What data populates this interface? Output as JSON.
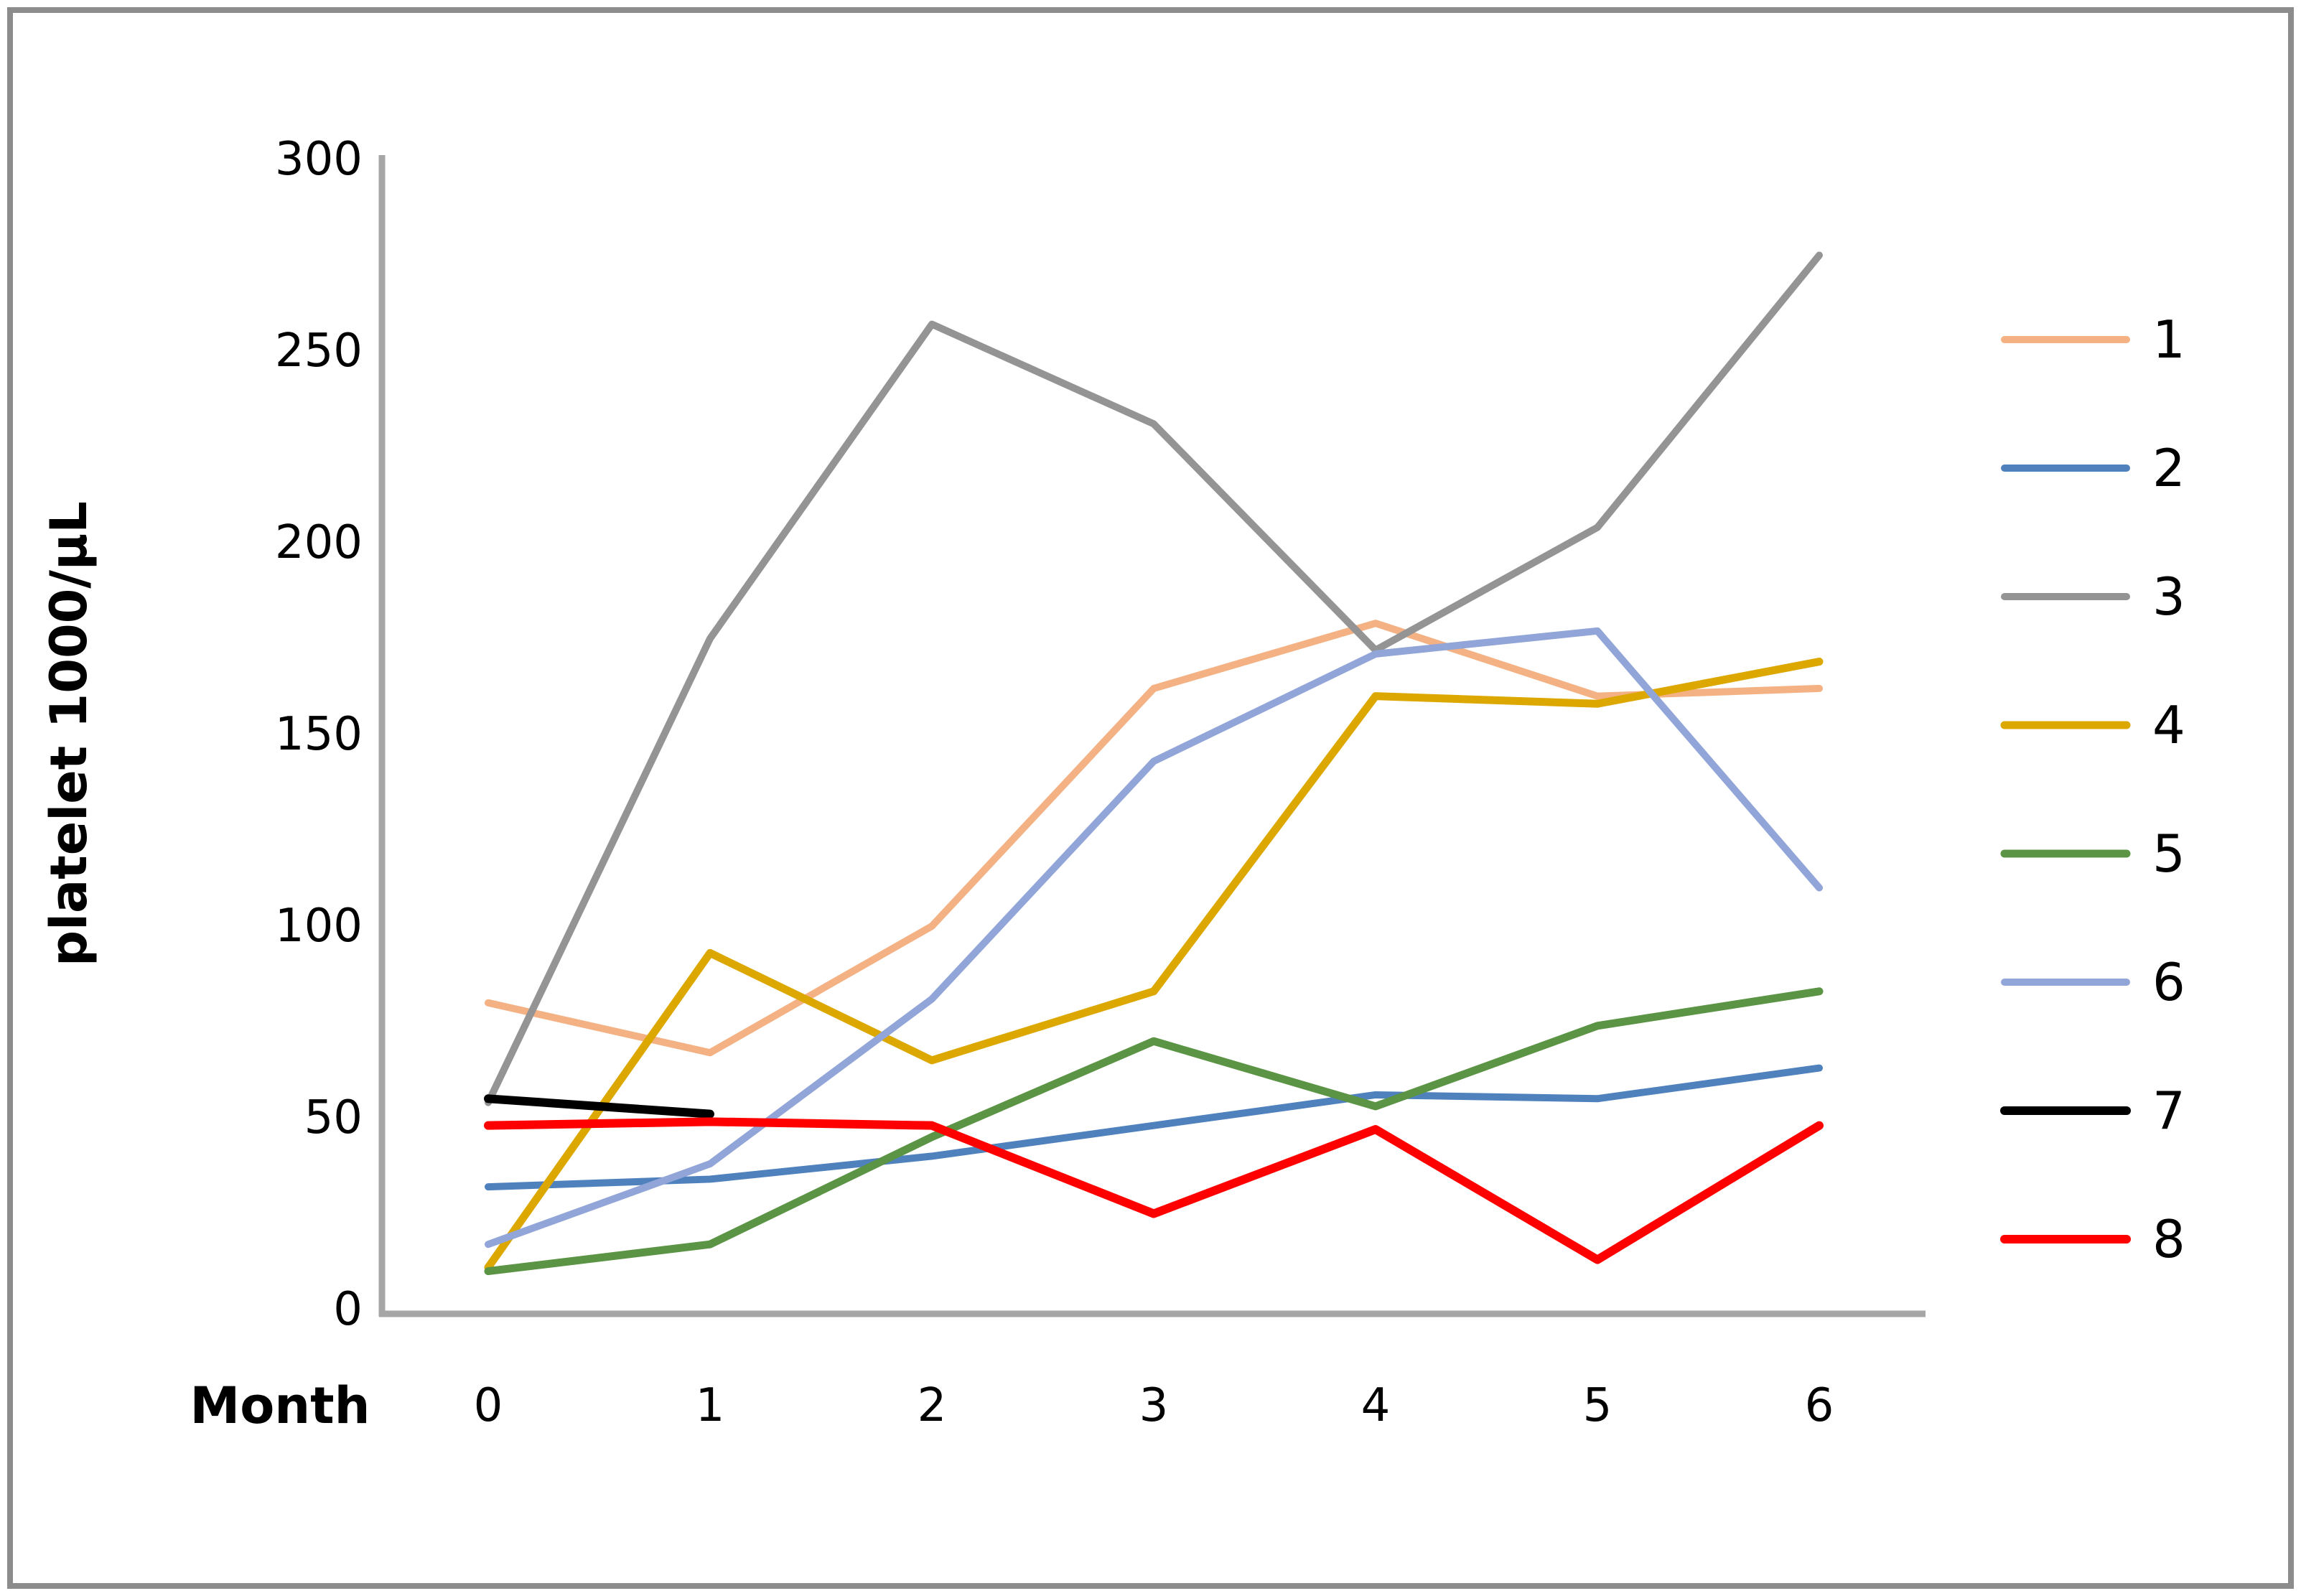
{
  "figure": {
    "background": "#ffffff",
    "border_color": "#8c8c8c",
    "axis_color": "#a6a6a6"
  },
  "chart_data": {
    "type": "line",
    "title": "",
    "xlabel": "Month",
    "ylabel": "platelet 1000/μL",
    "x": [
      0,
      1,
      2,
      3,
      4,
      5,
      6
    ],
    "xlim": [
      0,
      6
    ],
    "ylim": [
      0,
      300
    ],
    "yticks": [
      0,
      50,
      100,
      150,
      200,
      250,
      300
    ],
    "grid": false,
    "legend_position": "right",
    "series": [
      {
        "name": "1",
        "color": "#F4B183",
        "width": 10,
        "values": [
          80,
          67,
          100,
          162,
          179,
          160,
          162
        ]
      },
      {
        "name": "2",
        "color": "#4F81BD",
        "width": 10,
        "values": [
          32,
          34,
          40,
          48,
          56,
          55,
          63
        ]
      },
      {
        "name": "3",
        "color": "#949494",
        "width": 10,
        "values": [
          54,
          175,
          257,
          231,
          172,
          204,
          275
        ]
      },
      {
        "name": "4",
        "color": "#DCA800",
        "width": 11,
        "values": [
          11,
          93,
          65,
          83,
          160,
          158,
          169
        ]
      },
      {
        "name": "5",
        "color": "#5B9444",
        "width": 11,
        "values": [
          10,
          17,
          45,
          70,
          53,
          74,
          83
        ]
      },
      {
        "name": "6",
        "color": "#92A5D8",
        "width": 10,
        "values": [
          17,
          38,
          81,
          143,
          171,
          177,
          110
        ]
      },
      {
        "name": "7",
        "color": "#000000",
        "width": 12,
        "values": [
          55,
          51,
          null,
          null,
          null,
          null,
          null
        ]
      },
      {
        "name": "8",
        "color": "#FF0000",
        "width": 12,
        "values": [
          48,
          49,
          48,
          25,
          47,
          13,
          48
        ]
      }
    ]
  }
}
